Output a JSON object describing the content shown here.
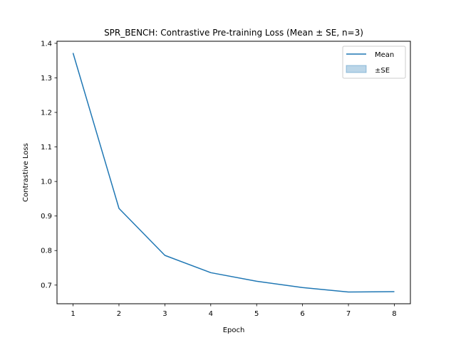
{
  "chart_data": {
    "type": "line",
    "title": "SPR_BENCH: Contrastive Pre-training Loss (Mean ± SE, n=3)",
    "xlabel": "Epoch",
    "ylabel": "Contrastive Loss",
    "x": [
      1,
      2,
      3,
      4,
      5,
      6,
      7,
      8
    ],
    "series": [
      {
        "name": "Mean",
        "values": [
          1.372,
          0.922,
          0.786,
          0.736,
          0.711,
          0.693,
          0.68,
          0.681
        ],
        "color": "#1f77b4"
      }
    ],
    "band": {
      "name": "±SE",
      "color": "#1f77b4",
      "opacity": 0.3
    },
    "xlim": [
      0.65,
      8.35
    ],
    "ylim": [
      0.646,
      1.406
    ],
    "xticks": [
      "1",
      "2",
      "3",
      "4",
      "5",
      "6",
      "7",
      "8"
    ],
    "yticks": [
      "0.7",
      "0.8",
      "0.9",
      "1.0",
      "1.1",
      "1.2",
      "1.3",
      "1.4"
    ],
    "grid": false,
    "legend_position": "top-right"
  }
}
